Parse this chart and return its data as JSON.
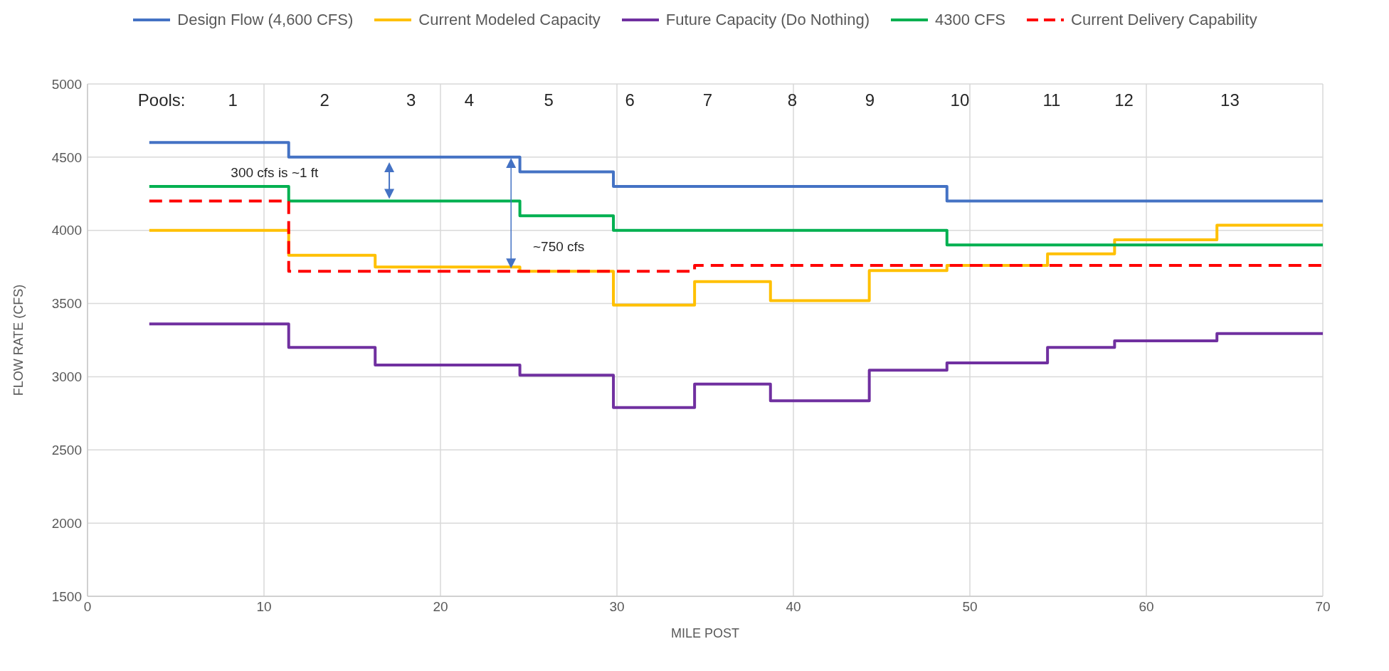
{
  "chart_data": {
    "type": "step",
    "xlabel": "MILE POST",
    "ylabel": "FLOW RATE (CFS)",
    "x": [
      3.5,
      11.4,
      16.3,
      24.5,
      29.8,
      34.4,
      38.7,
      44.3,
      48.7,
      54.4,
      58.2,
      64.0,
      70
    ],
    "series": [
      {
        "name": "Design Flow (4,600 CFS)",
        "color": "#4472c4",
        "values": [
          4600,
          4500,
          4500,
          4400,
          4300,
          4300,
          4300,
          4300,
          4200,
          4200,
          4200,
          4200,
          4200
        ]
      },
      {
        "name": "Current Modeled Capacity",
        "color": "#ffc000",
        "values": [
          4000,
          3830,
          3750,
          3720,
          3490,
          3650,
          3520,
          3725,
          3760,
          3840,
          3935,
          4035,
          4035
        ]
      },
      {
        "name": "Future Capacity (Do Nothing)",
        "color": "#7030a0",
        "values": [
          3360,
          3200,
          3080,
          3010,
          2790,
          2950,
          2835,
          3045,
          3095,
          3200,
          3245,
          3295,
          3295
        ]
      },
      {
        "name": "4300 CFS",
        "color": "#00b050",
        "values": [
          4300,
          4200,
          4200,
          4100,
          4000,
          4000,
          4000,
          4000,
          3900,
          3900,
          3900,
          3900,
          3900
        ]
      },
      {
        "name": "Current Delivery Capability",
        "color": "#ff0000",
        "line_style": "dashed",
        "values": [
          4200,
          3720,
          3720,
          3720,
          3720,
          3760,
          3760,
          3760,
          3760,
          3760,
          3760,
          3760,
          3760
        ]
      }
    ],
    "xlim": [
      0,
      70
    ],
    "xticks": [
      0,
      10,
      20,
      30,
      40,
      50,
      60,
      70
    ],
    "ylim": [
      1500,
      5000
    ],
    "yticks": [
      1500,
      2000,
      2500,
      3000,
      3500,
      4000,
      4500,
      5000
    ],
    "grid": true,
    "legend": "top",
    "marker": "none",
    "line_style": "solid",
    "annotations": [
      "Pools: 1 2 3 4 5 6 7 8 9 10 11 12 13",
      "300 cfs is ~1 ft",
      "~750 cfs"
    ]
  }
}
